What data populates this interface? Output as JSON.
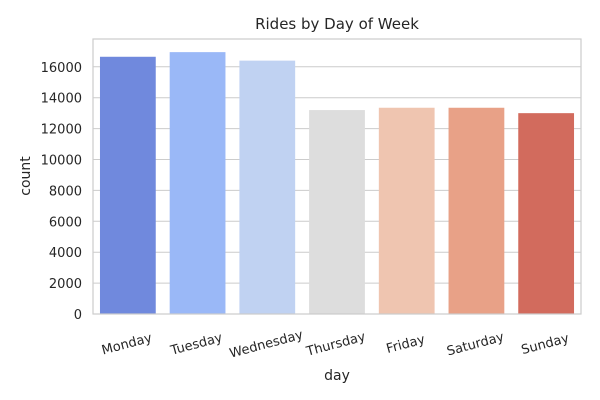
{
  "chart_data": {
    "type": "bar",
    "title": "Rides by Day of Week",
    "xlabel": "day",
    "ylabel": "count",
    "categories": [
      "Monday",
      "Tuesday",
      "Wednesday",
      "Thursday",
      "Friday",
      "Saturday",
      "Sunday"
    ],
    "values": [
      16650,
      16950,
      16400,
      13200,
      13350,
      13350,
      13000
    ],
    "colors": [
      "#7089dd",
      "#9ab8f7",
      "#c0d2f2",
      "#dddddd",
      "#efc5b0",
      "#e8a187",
      "#d26b5d"
    ],
    "yticks": [
      0,
      2000,
      4000,
      6000,
      8000,
      10000,
      12000,
      14000,
      16000
    ],
    "ylim": [
      0,
      17800
    ],
    "grid": true,
    "legend": "none"
  }
}
